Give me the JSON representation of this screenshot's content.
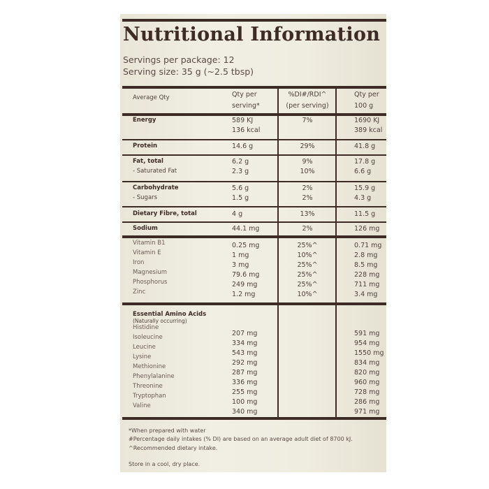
{
  "title": "Nutritional Information",
  "servings_per_package": "Servings per package: 12",
  "serving_size": "Serving size: 35 g (~2.5 tbsp)",
  "header": {
    "average_qty": "Average Qty",
    "qty_per_serving": [
      "Qty per",
      "serving*"
    ],
    "di_rdi": [
      "%DI#/RDI^",
      "(per serving)"
    ],
    "qty_per_100g": [
      "Qty per",
      "100 g"
    ]
  },
  "nutrients": [
    {
      "label": "Energy",
      "bold": true,
      "serving": [
        "589 KJ",
        "136 kcal"
      ],
      "di": [
        "7%"
      ],
      "per100": [
        "1690 KJ",
        "389  kcal"
      ]
    },
    {
      "label": "Protein",
      "bold": true,
      "serving": [
        "14.6 g"
      ],
      "di": [
        "29%"
      ],
      "per100": [
        "41.8 g"
      ]
    },
    {
      "label": "Fat, total",
      "bold": true,
      "sub": "- Saturated Fat",
      "serving": [
        "6.2 g",
        "2.3 g"
      ],
      "di": [
        "9%",
        "10%"
      ],
      "per100": [
        "17.8 g",
        "6.6 g"
      ]
    },
    {
      "label": "Carbohydrate",
      "bold": true,
      "sub": "-  Sugars",
      "serving": [
        "5.6 g",
        "1.5 g"
      ],
      "di": [
        "2%",
        "2%"
      ],
      "per100": [
        "15.9 g",
        "4.3 g"
      ]
    },
    {
      "label": "Dietary Fibre, total",
      "bold": true,
      "serving": [
        "4 g"
      ],
      "di": [
        "13%"
      ],
      "per100": [
        "11.5 g"
      ]
    },
    {
      "label": "Sodium",
      "bold": true,
      "serving": [
        "44.1  mg"
      ],
      "di": [
        "2%"
      ],
      "per100": [
        "126 mg"
      ]
    }
  ],
  "vitamins": [
    {
      "label": "Vitamin B1",
      "serving": "0.25 mg",
      "di": "25%^",
      "per100": "0.71 mg"
    },
    {
      "label": "Vitamin E",
      "serving": "1 mg",
      "di": "10%^",
      "per100": "2.8 mg"
    },
    {
      "label": "Iron",
      "serving": "3 mg",
      "di": "25%^",
      "per100": "8.5 mg"
    },
    {
      "label": "Magnesium",
      "serving": "79.6 mg",
      "di": "25%^",
      "per100": "228 mg"
    },
    {
      "label": "Phosphorus",
      "serving": "249 mg",
      "di": "25%^",
      "per100": "711 mg"
    },
    {
      "label": "Zinc",
      "serving": "1.2 mg",
      "di": "10%^",
      "per100": "3.4 mg"
    }
  ],
  "amino": {
    "heading": "Essential Amino Acids",
    "subheading": "(Naturally occurring)",
    "items": [
      {
        "label": "Histidine",
        "serving": "207 mg",
        "per100": "591 mg"
      },
      {
        "label": "Isoleucine",
        "serving": "334 mg",
        "per100": "954 mg"
      },
      {
        "label": "Leucine",
        "serving": "543 mg",
        "per100": "1550 mg"
      },
      {
        "label": "Lysine",
        "serving": "292 mg",
        "per100": "834 mg"
      },
      {
        "label": "Methionine",
        "serving": "287 mg",
        "per100": "820 mg"
      },
      {
        "label": "Phenylalanine",
        "serving": "336 mg",
        "per100": "960 mg"
      },
      {
        "label": "Threonine",
        "serving": "255 mg",
        "per100": "728 mg"
      },
      {
        "label": "Tryptophan",
        "serving": "100 mg",
        "per100": "286 mg"
      },
      {
        "label": "Valine",
        "serving": "340 mg",
        "per100": "971 mg"
      }
    ]
  },
  "footnotes": [
    "*When prepared with water",
    "#Percentage daily intakes (% DI) are based on an average adult diet of 8700 kJ.",
    "^Recommended dietary intake."
  ],
  "storage": "Store in a cool, dry place."
}
